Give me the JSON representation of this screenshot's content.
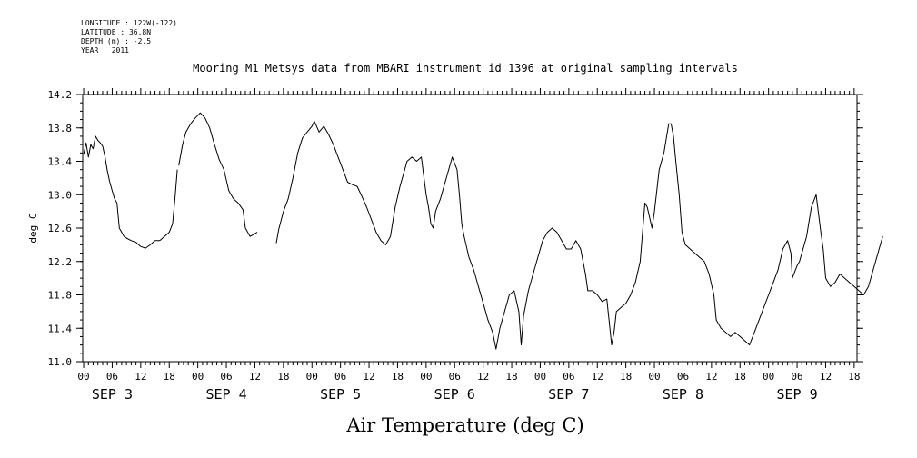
{
  "header": {
    "meta_lines": [
      "LONGITUDE : 122W(-122)",
      "LATITUDE : 36.8N",
      "DEPTH (m) : -2.5",
      "YEAR : 2011"
    ],
    "title": "Mooring M1 Metsys data from MBARI instrument id 1396 at original sampling intervals"
  },
  "chart_data": {
    "type": "line",
    "title": "Mooring M1 Metsys data from MBARI instrument id 1396 at original sampling intervals",
    "xlabel": "Air Temperature (deg C)",
    "ylabel": "deg C",
    "xlim": [
      -0.2,
      162.6
    ],
    "ylim": [
      11.0,
      14.2
    ],
    "y_ticks": [
      "11.0",
      "11.4",
      "11.8",
      "12.2",
      "12.6",
      "13.0",
      "13.4",
      "13.8",
      "14.2"
    ],
    "x_ticks_hours": [
      0,
      6,
      12,
      18,
      24,
      30,
      36,
      42,
      48,
      54,
      60,
      66,
      72,
      78,
      84,
      90,
      96,
      102,
      108,
      114,
      120,
      126,
      132,
      138,
      144,
      150,
      156,
      162
    ],
    "x_tick_labels": [
      "00",
      "06",
      "12",
      "18",
      "00",
      "06",
      "12",
      "18",
      "00",
      "06",
      "12",
      "18",
      "00",
      "06",
      "12",
      "18",
      "00",
      "06",
      "12",
      "18",
      "00",
      "06",
      "12",
      "18",
      "00",
      "06",
      "12",
      "18"
    ],
    "day_labels": [
      {
        "hour": 6,
        "label": "SEP  3"
      },
      {
        "hour": 30,
        "label": "SEP  4"
      },
      {
        "hour": 54,
        "label": "SEP  5"
      },
      {
        "hour": 78,
        "label": "SEP  6"
      },
      {
        "hour": 102,
        "label": "SEP  7"
      },
      {
        "hour": 126,
        "label": "SEP  8"
      },
      {
        "hour": 150,
        "label": "SEP  9"
      }
    ],
    "grid": false,
    "series": [
      {
        "name": "",
        "segments": [
          [
            [
              0,
              13.48
            ],
            [
              0.5,
              13.62
            ],
            [
              1,
              13.45
            ],
            [
              1.5,
              13.6
            ],
            [
              2,
              13.55
            ],
            [
              2.5,
              13.7
            ],
            [
              3,
              13.65
            ],
            [
              3.5,
              13.62
            ],
            [
              4,
              13.58
            ],
            [
              4.5,
              13.45
            ],
            [
              5,
              13.28
            ],
            [
              5.5,
              13.15
            ],
            [
              6,
              13.05
            ],
            [
              6.5,
              12.95
            ],
            [
              7,
              12.9
            ],
            [
              7.5,
              12.6
            ],
            [
              8,
              12.55
            ],
            [
              8.5,
              12.5
            ],
            [
              9,
              12.48
            ],
            [
              10,
              12.45
            ],
            [
              11,
              12.43
            ],
            [
              12,
              12.38
            ],
            [
              13,
              12.36
            ],
            [
              14,
              12.4
            ],
            [
              15,
              12.45
            ],
            [
              16,
              12.45
            ],
            [
              17,
              12.5
            ],
            [
              18,
              12.55
            ],
            [
              18.7,
              12.65
            ],
            [
              19.2,
              12.95
            ],
            [
              19.7,
              13.3
            ]
          ],
          [
            [
              20,
              13.35
            ],
            [
              20.8,
              13.6
            ],
            [
              21.5,
              13.75
            ],
            [
              22.5,
              13.85
            ],
            [
              23.5,
              13.92
            ],
            [
              24.5,
              13.98
            ],
            [
              25.5,
              13.92
            ],
            [
              26.5,
              13.8
            ],
            [
              27.5,
              13.6
            ],
            [
              28.5,
              13.42
            ],
            [
              29.5,
              13.3
            ],
            [
              30.5,
              13.05
            ],
            [
              31.5,
              12.95
            ],
            [
              32.5,
              12.9
            ],
            [
              33.5,
              12.82
            ],
            [
              34,
              12.6
            ],
            [
              35,
              12.5
            ],
            [
              36.5,
              12.55
            ]
          ],
          [
            [
              40.5,
              12.42
            ],
            [
              41,
              12.58
            ],
            [
              42,
              12.8
            ],
            [
              43,
              12.95
            ],
            [
              44,
              13.2
            ],
            [
              45,
              13.5
            ],
            [
              46,
              13.68
            ],
            [
              47,
              13.75
            ],
            [
              48,
              13.82
            ],
            [
              48.5,
              13.88
            ],
            [
              49.5,
              13.75
            ],
            [
              50.5,
              13.82
            ],
            [
              51.5,
              13.72
            ],
            [
              52.5,
              13.6
            ],
            [
              53.5,
              13.45
            ],
            [
              54.5,
              13.3
            ],
            [
              55.5,
              13.15
            ],
            [
              56.5,
              13.12
            ],
            [
              57.5,
              13.1
            ],
            [
              58.5,
              12.98
            ],
            [
              59.5,
              12.85
            ],
            [
              60.5,
              12.7
            ],
            [
              61.5,
              12.55
            ],
            [
              62.5,
              12.45
            ],
            [
              63.5,
              12.4
            ],
            [
              64.5,
              12.5
            ],
            [
              65.5,
              12.85
            ],
            [
              66.5,
              13.1
            ],
            [
              67.5,
              13.3
            ],
            [
              68,
              13.4
            ],
            [
              69,
              13.45
            ],
            [
              70,
              13.4
            ],
            [
              71,
              13.45
            ],
            [
              72,
              13.0
            ],
            [
              72.5,
              12.85
            ],
            [
              73,
              12.65
            ],
            [
              73.5,
              12.6
            ],
            [
              74,
              12.8
            ],
            [
              75,
              12.95
            ],
            [
              76,
              13.15
            ],
            [
              77,
              13.35
            ],
            [
              77.5,
              13.45
            ],
            [
              78.5,
              13.3
            ],
            [
              79,
              13.0
            ],
            [
              79.5,
              12.65
            ],
            [
              80,
              12.5
            ],
            [
              81,
              12.25
            ],
            [
              82,
              12.1
            ],
            [
              83,
              11.9
            ],
            [
              84,
              11.7
            ],
            [
              85,
              11.5
            ],
            [
              86,
              11.35
            ],
            [
              86.7,
              11.15
            ],
            [
              87.5,
              11.4
            ],
            [
              88.5,
              11.6
            ],
            [
              89.5,
              11.8
            ],
            [
              90.5,
              11.85
            ],
            [
              91.5,
              11.6
            ],
            [
              92,
              11.2
            ],
            [
              92.5,
              11.55
            ],
            [
              93.5,
              11.85
            ],
            [
              94.5,
              12.05
            ],
            [
              95.5,
              12.25
            ],
            [
              96.5,
              12.45
            ],
            [
              97.5,
              12.55
            ],
            [
              98.5,
              12.6
            ],
            [
              99.5,
              12.55
            ],
            [
              100.5,
              12.45
            ],
            [
              101.5,
              12.35
            ],
            [
              102.5,
              12.35
            ],
            [
              103.5,
              12.45
            ],
            [
              104.5,
              12.35
            ],
            [
              105.5,
              12.05
            ],
            [
              106,
              11.85
            ],
            [
              107,
              11.85
            ],
            [
              108,
              11.8
            ],
            [
              109,
              11.72
            ],
            [
              110,
              11.75
            ],
            [
              111,
              11.2
            ],
            [
              111.5,
              11.35
            ],
            [
              112,
              11.6
            ],
            [
              113,
              11.65
            ],
            [
              114,
              11.7
            ],
            [
              115,
              11.8
            ],
            [
              116,
              11.95
            ],
            [
              117,
              12.2
            ],
            [
              117.5,
              12.55
            ],
            [
              118,
              12.9
            ],
            [
              118.5,
              12.85
            ],
            [
              119.5,
              12.6
            ],
            [
              120,
              12.8
            ],
            [
              121,
              13.3
            ],
            [
              122,
              13.5
            ],
            [
              123,
              13.85
            ],
            [
              123.5,
              13.85
            ],
            [
              124,
              13.7
            ],
            [
              124.5,
              13.4
            ],
            [
              125.2,
              13.0
            ],
            [
              125.8,
              12.55
            ],
            [
              126.5,
              12.4
            ],
            [
              127.5,
              12.35
            ],
            [
              128.5,
              12.3
            ],
            [
              129.5,
              12.25
            ],
            [
              130.5,
              12.2
            ],
            [
              131.5,
              12.05
            ],
            [
              132.5,
              11.8
            ],
            [
              133,
              11.5
            ],
            [
              134,
              11.4
            ],
            [
              135,
              11.35
            ],
            [
              136,
              11.3
            ],
            [
              137,
              11.35
            ],
            [
              138,
              11.3
            ],
            [
              139,
              11.25
            ],
            [
              140,
              11.2
            ],
            [
              141,
              11.35
            ],
            [
              142,
              11.5
            ],
            [
              143,
              11.65
            ],
            [
              144,
              11.8
            ],
            [
              145,
              11.95
            ],
            [
              146,
              12.1
            ],
            [
              147,
              12.35
            ],
            [
              148,
              12.45
            ],
            [
              148.7,
              12.3
            ],
            [
              149,
              12.0
            ],
            [
              150,
              12.15
            ],
            [
              150.5,
              12.2
            ],
            [
              151,
              12.3
            ],
            [
              152,
              12.5
            ],
            [
              153,
              12.85
            ],
            [
              154,
              13.0
            ],
            [
              155,
              12.55
            ],
            [
              155.5,
              12.35
            ],
            [
              156,
              12.0
            ],
            [
              157,
              11.9
            ],
            [
              158,
              11.95
            ],
            [
              159,
              12.05
            ],
            [
              160,
              12.0
            ],
            [
              161,
              11.95
            ],
            [
              162,
              11.9
            ],
            [
              163,
              11.85
            ],
            [
              164,
              11.8
            ],
            [
              165,
              11.9
            ],
            [
              166,
              12.1
            ],
            [
              167,
              12.3
            ],
            [
              167.5,
              12.4
            ],
            [
              168,
              12.5
            ]
          ]
        ]
      }
    ]
  }
}
